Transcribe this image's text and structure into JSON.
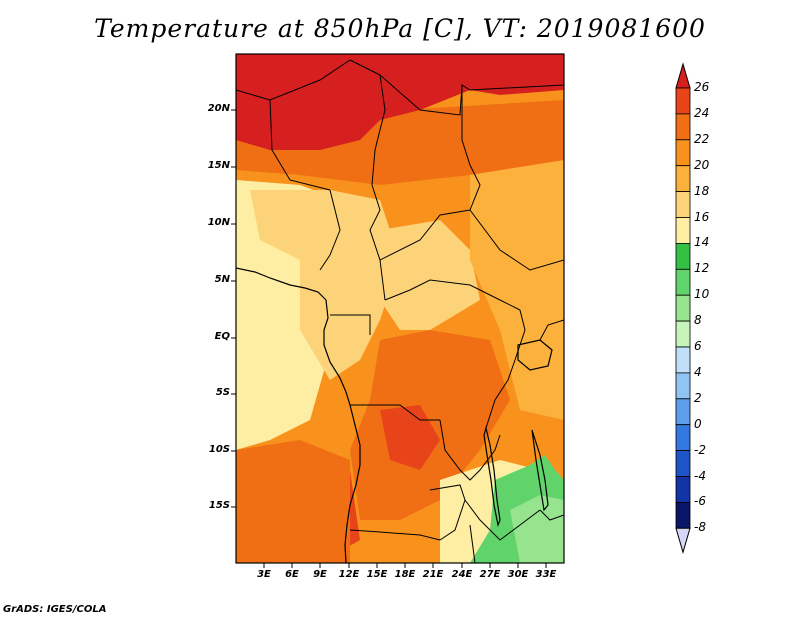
{
  "title": "Temperature at 850hPa [C], VT: 2019081600",
  "credit": "GrADS: IGES/COLA",
  "lat_labels": [
    "20N",
    "15N",
    "10N",
    "5N",
    "EQ",
    "5S",
    "10S",
    "15S"
  ],
  "lon_labels": [
    "3E",
    "6E",
    "9E",
    "12E",
    "15E",
    "18E",
    "21E",
    "24E",
    "27E",
    "30E",
    "33E"
  ],
  "colorbar": {
    "labels": [
      "26",
      "24",
      "22",
      "20",
      "18",
      "16",
      "14",
      "12",
      "10",
      "8",
      "6",
      "4",
      "2",
      "0",
      "-2",
      "-4",
      "-6",
      "-8"
    ],
    "colors": [
      "#d6201f",
      "#e8441a",
      "#f06e14",
      "#f8921c",
      "#fbb13c",
      "#fdd37a",
      "#fdeea3",
      "#34c143",
      "#60d36a",
      "#96e48e",
      "#c6f4ba",
      "#bfe0f8",
      "#90c4f4",
      "#5e9eeb",
      "#3378e0",
      "#1d55c9",
      "#1234a4",
      "#0a1668",
      "#d6d6f6"
    ],
    "top_color": "#d6201f",
    "bottom_color": "#d6d6f6"
  },
  "palette": {
    "deep_red": "#d6201f",
    "red_orange": "#e8441a",
    "orange": "#f06e14",
    "light_orange": "#f8921c",
    "amber": "#fbb13c",
    "tan": "#fdd37a",
    "pale_yellow": "#fdeea3",
    "green": "#60d36a",
    "light_green": "#96e48e"
  }
}
